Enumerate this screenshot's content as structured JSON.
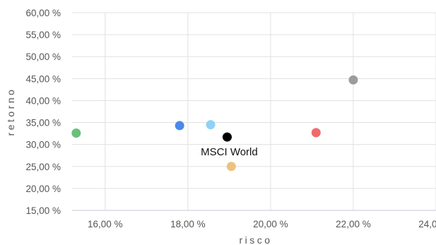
{
  "chart_data": {
    "type": "scatter",
    "xlabel": "risco",
    "ylabel": "retorno",
    "xlim": [
      15.2,
      24.0
    ],
    "ylim": [
      15.0,
      60.0
    ],
    "x_ticks": [
      "16,00 %",
      "18,00 %",
      "20,00 %",
      "22,00 %",
      "24,00 %"
    ],
    "x_tick_values": [
      16,
      18,
      20,
      22,
      24
    ],
    "y_ticks": [
      "15,00 %",
      "20,00 %",
      "25,00 %",
      "30,00 %",
      "35,00 %",
      "40,00 %",
      "45,00 %",
      "50,00 %",
      "55,00 %",
      "60,00 %"
    ],
    "y_tick_values": [
      15,
      20,
      25,
      30,
      35,
      40,
      45,
      50,
      55,
      60
    ],
    "grid": true,
    "points": [
      {
        "x": 15.3,
        "y": 32.6,
        "color": "#6abf7b"
      },
      {
        "x": 17.8,
        "y": 34.3,
        "color": "#4a8ae8"
      },
      {
        "x": 18.55,
        "y": 34.5,
        "color": "#8fd1f7"
      },
      {
        "x": 18.95,
        "y": 31.7,
        "color": "#000000",
        "label": "MSCI World"
      },
      {
        "x": 19.05,
        "y": 25.0,
        "color": "#edc27f"
      },
      {
        "x": 21.1,
        "y": 32.7,
        "color": "#f06a6a"
      },
      {
        "x": 22.0,
        "y": 44.7,
        "color": "#9c9c9c"
      }
    ]
  }
}
